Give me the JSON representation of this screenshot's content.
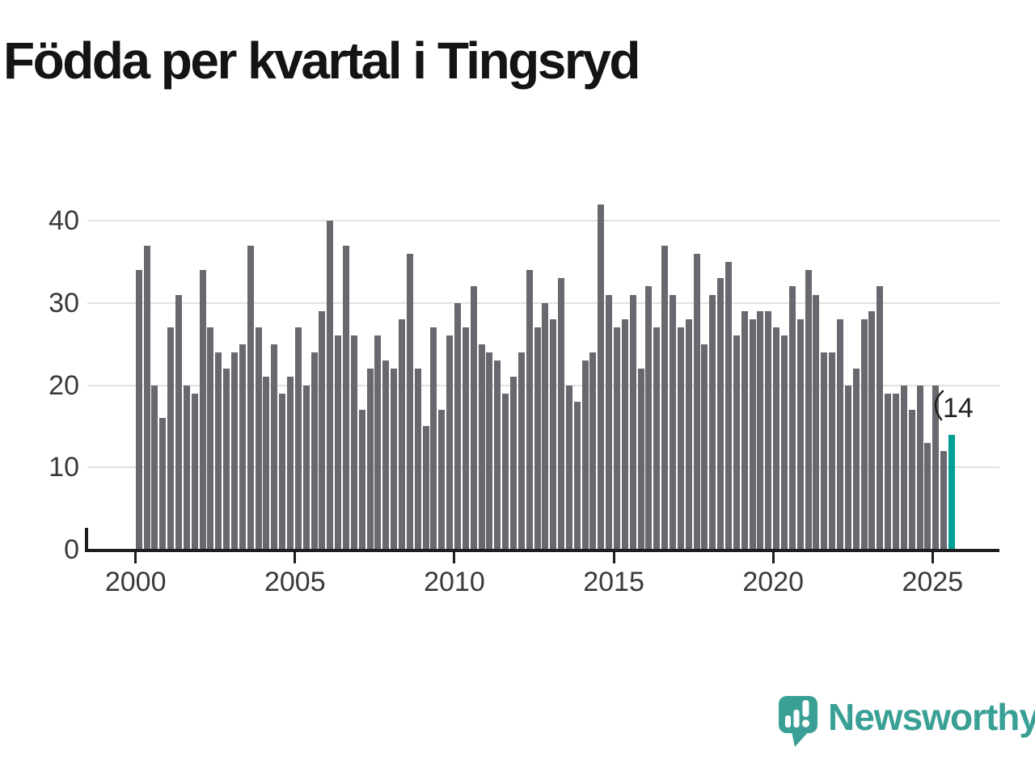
{
  "title": "Födda per kvartal i Tingsryd",
  "annotation": {
    "label": "14"
  },
  "logo": {
    "text": "Newsworthy"
  },
  "colors": {
    "bar": "#68686f",
    "highlight": "#00a096",
    "gridline": "#e2e2e2",
    "axis": "#1d1d1d",
    "tick_text": "#3a3a3a",
    "logo_teal": "#3aa096"
  },
  "chart_data": {
    "type": "bar",
    "title": "Födda per kvartal i Tingsryd",
    "frequency": "quarterly",
    "x_start": "2000 Q1",
    "x_end": "2025 Q3",
    "values": [
      34,
      37,
      20,
      16,
      27,
      31,
      20,
      19,
      34,
      27,
      24,
      22,
      24,
      25,
      37,
      27,
      21,
      25,
      19,
      21,
      27,
      20,
      24,
      29,
      40,
      26,
      37,
      26,
      17,
      22,
      26,
      23,
      22,
      28,
      36,
      22,
      15,
      27,
      17,
      26,
      30,
      27,
      32,
      25,
      24,
      23,
      19,
      21,
      24,
      34,
      27,
      30,
      28,
      33,
      20,
      18,
      23,
      24,
      42,
      31,
      27,
      28,
      31,
      22,
      32,
      27,
      37,
      31,
      27,
      28,
      36,
      25,
      31,
      33,
      35,
      26,
      29,
      28,
      29,
      29,
      27,
      26,
      32,
      28,
      34,
      31,
      24,
      24,
      28,
      20,
      22,
      28,
      29,
      32,
      19,
      19,
      20,
      17,
      20,
      13,
      20,
      12,
      14
    ],
    "years_per_row_note": "values listed 4 per year starting 2000; 2025 has Q1-Q3 only",
    "highlighted_last_value": 14,
    "x_ticks": [
      2000,
      2005,
      2010,
      2015,
      2020,
      2025
    ],
    "y_ticks": [
      0,
      10,
      20,
      30,
      40
    ],
    "ylim": [
      0,
      42
    ],
    "grid": true,
    "legend": false,
    "bar_color": "#68686f",
    "highlight_color": "#00a096",
    "annotation": {
      "text": "14",
      "target": "last_bar"
    }
  }
}
